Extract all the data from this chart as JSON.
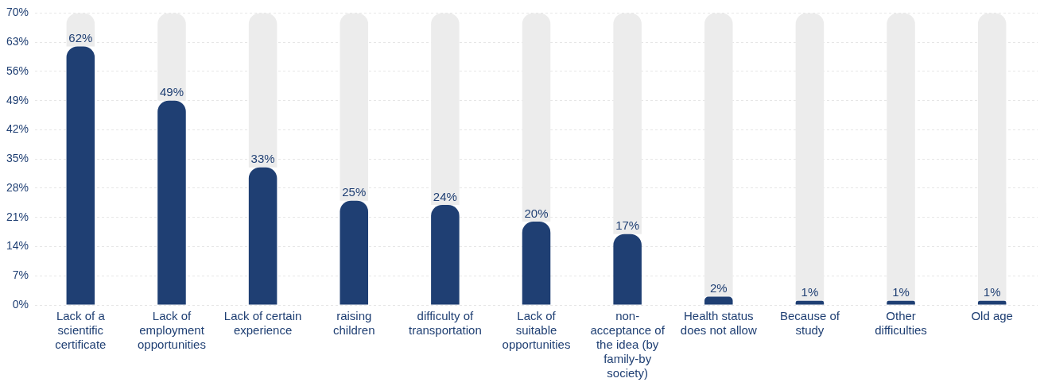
{
  "chart_data": {
    "type": "bar",
    "categories": [
      "Lack of a scientific certificate",
      "Lack of employment opportunities",
      "Lack of certain experience",
      "raising children",
      "difficulty of transportation",
      "Lack of suitable opportunities",
      "non-acceptance of the idea (by family-by society)",
      "Health status does not allow",
      "Because of study",
      "Other difficulties",
      "Old age"
    ],
    "series": [
      {
        "color": "#1f3f73",
        "values": [
          62,
          49,
          33,
          25,
          24,
          20,
          17,
          2,
          1,
          1,
          1
        ],
        "value_labels": [
          "62%",
          "49%",
          "33%",
          "25%",
          "24%",
          "20%",
          "17%",
          "2%",
          "1%",
          "1%",
          "1%"
        ]
      },
      {
        "color": "#ececec",
        "values": [
          8,
          21,
          37,
          45,
          46,
          50,
          53,
          68,
          69,
          69,
          69
        ]
      }
    ],
    "ylim": [
      0,
      70
    ],
    "yticks": [
      {
        "value": 0,
        "label": "0%"
      },
      {
        "value": 7,
        "label": "7%"
      },
      {
        "value": 14,
        "label": "14%"
      },
      {
        "value": 21,
        "label": "21%"
      },
      {
        "value": 28,
        "label": "28%"
      },
      {
        "value": 35,
        "label": "35%"
      },
      {
        "value": 42,
        "label": "42%"
      },
      {
        "value": 49,
        "label": "49%"
      },
      {
        "value": 56,
        "label": "56%"
      },
      {
        "value": 63,
        "label": "63%"
      },
      {
        "value": 70,
        "label": "70%"
      }
    ],
    "stacked": true,
    "grid": "y",
    "legend": false
  }
}
